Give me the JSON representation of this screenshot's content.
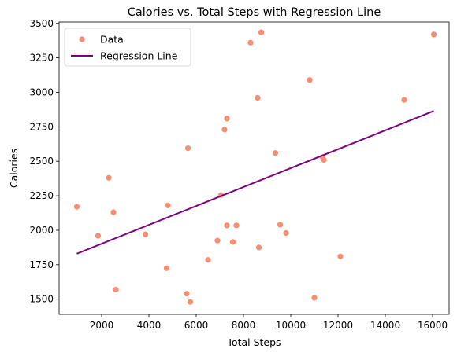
{
  "chart_data": {
    "type": "scatter",
    "title": "Calories vs. Total Steps with Regression Line",
    "xlabel": "Total Steps",
    "ylabel": "Calories",
    "xlim": [
      200,
      16700
    ],
    "ylim": [
      1390,
      3510
    ],
    "x_ticks": [
      2000,
      4000,
      6000,
      8000,
      10000,
      12000,
      14000,
      16000
    ],
    "y_ticks": [
      1500,
      1750,
      2000,
      2250,
      2500,
      2750,
      3000,
      3250,
      3500
    ],
    "grid": false,
    "legend_position": "top-left",
    "series": [
      {
        "name": "Data",
        "kind": "scatter",
        "color": "#fa8c70",
        "points": [
          {
            "x": 950,
            "y": 2170
          },
          {
            "x": 1850,
            "y": 1960
          },
          {
            "x": 2300,
            "y": 2380
          },
          {
            "x": 2500,
            "y": 2130
          },
          {
            "x": 2600,
            "y": 1570
          },
          {
            "x": 3850,
            "y": 1970
          },
          {
            "x": 4750,
            "y": 1725
          },
          {
            "x": 4800,
            "y": 2180
          },
          {
            "x": 5600,
            "y": 1540
          },
          {
            "x": 5650,
            "y": 2595
          },
          {
            "x": 5750,
            "y": 1480
          },
          {
            "x": 6500,
            "y": 1785
          },
          {
            "x": 6900,
            "y": 1925
          },
          {
            "x": 7050,
            "y": 2255
          },
          {
            "x": 7200,
            "y": 2730
          },
          {
            "x": 7300,
            "y": 2810
          },
          {
            "x": 7300,
            "y": 2035
          },
          {
            "x": 7550,
            "y": 1915
          },
          {
            "x": 7700,
            "y": 2035
          },
          {
            "x": 8300,
            "y": 3360
          },
          {
            "x": 8600,
            "y": 2960
          },
          {
            "x": 8650,
            "y": 1875
          },
          {
            "x": 8750,
            "y": 3435
          },
          {
            "x": 9350,
            "y": 2560
          },
          {
            "x": 9550,
            "y": 2040
          },
          {
            "x": 9800,
            "y": 1980
          },
          {
            "x": 10800,
            "y": 3090
          },
          {
            "x": 11000,
            "y": 1510
          },
          {
            "x": 11350,
            "y": 2530
          },
          {
            "x": 11400,
            "y": 2510
          },
          {
            "x": 12100,
            "y": 1810
          },
          {
            "x": 14800,
            "y": 2945
          },
          {
            "x": 16050,
            "y": 3420
          }
        ]
      },
      {
        "name": "Regression Line",
        "kind": "line",
        "color": "#800080",
        "points": [
          {
            "x": 950,
            "y": 1830
          },
          {
            "x": 16050,
            "y": 2865
          }
        ]
      }
    ]
  }
}
